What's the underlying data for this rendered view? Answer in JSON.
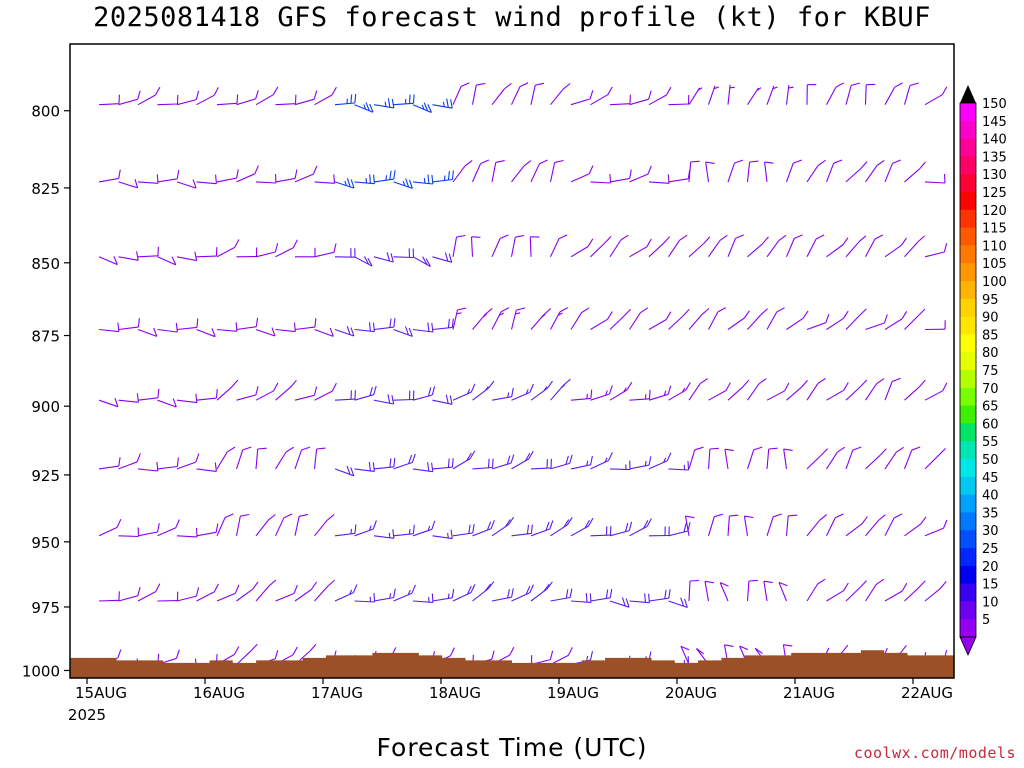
{
  "title": "2025081418 GFS forecast wind profile (kt) for KBUF",
  "xlabel": "Forecast Time (UTC)",
  "credit": "coolwx.com/models",
  "chart_data": {
    "type": "wind-barb profile",
    "title": "2025081418 GFS forecast wind profile (kt) for KBUF",
    "xlabel": "Forecast Time (UTC)",
    "ylabel": "",
    "x_ticks": [
      "15AUG",
      "16AUG",
      "17AUG",
      "18AUG",
      "19AUG",
      "20AUG",
      "21AUG",
      "22AUG"
    ],
    "x_year_label": "2025",
    "y_ticks": [
      800,
      825,
      850,
      875,
      900,
      925,
      950,
      975,
      1000
    ],
    "y_range": [
      1003,
      779
    ],
    "y_scale": "log",
    "units": "kt",
    "colorbar": {
      "labels": [
        150,
        145,
        140,
        135,
        130,
        125,
        120,
        115,
        110,
        105,
        100,
        95,
        90,
        85,
        80,
        75,
        70,
        65,
        60,
        55,
        50,
        45,
        40,
        35,
        30,
        25,
        20,
        15,
        10,
        5
      ],
      "colors": [
        "#ff00ff",
        "#ff00cc",
        "#ff0099",
        "#ff0066",
        "#ff0033",
        "#ff0000",
        "#ff3300",
        "#ff5a00",
        "#ff7800",
        "#ff9600",
        "#ffb400",
        "#ffd200",
        "#ffe600",
        "#ffff00",
        "#e6ff00",
        "#b4ff00",
        "#78ff00",
        "#3cf000",
        "#00e664",
        "#00e6b4",
        "#00e6e6",
        "#00c8f0",
        "#00a0ff",
        "#0078ff",
        "#0050ff",
        "#0028ff",
        "#0000f0",
        "#3c00f0",
        "#6e00f0",
        "#9600f0"
      ]
    },
    "terrain_color": "#9c5028",
    "speed_colors": {
      "light": "#8a00ee",
      "moderate": "#5a1cf0",
      "strong": "#0a3cf0"
    },
    "columns": [
      {
        "date": "15AUG",
        "barbs": [
          [
            800,
            "light",
            280,
            10
          ],
          [
            825,
            "light",
            270,
            10
          ],
          [
            850,
            "light",
            260,
            10
          ],
          [
            875,
            "light",
            260,
            10
          ],
          [
            900,
            "light",
            270,
            10
          ],
          [
            925,
            "light",
            280,
            10
          ],
          [
            950,
            "light",
            280,
            10
          ],
          [
            975,
            "light",
            280,
            10
          ],
          [
            1000,
            "light",
            280,
            10
          ]
        ]
      },
      {
        "date": "16AUG",
        "barbs": [
          [
            800,
            "light",
            290,
            10
          ],
          [
            825,
            "light",
            280,
            10
          ],
          [
            850,
            "light",
            280,
            10
          ],
          [
            875,
            "light",
            270,
            10
          ],
          [
            900,
            "light",
            300,
            10
          ],
          [
            925,
            "light",
            340,
            10
          ],
          [
            950,
            "light",
            330,
            10
          ],
          [
            975,
            "light",
            310,
            10
          ],
          [
            1000,
            "light",
            300,
            10
          ]
        ]
      },
      {
        "date": "17AUG",
        "barbs": [
          [
            800,
            "strong",
            260,
            25
          ],
          [
            825,
            "strong",
            260,
            25
          ],
          [
            850,
            "moderate",
            260,
            20
          ],
          [
            875,
            "moderate",
            265,
            20
          ],
          [
            900,
            "moderate",
            270,
            20
          ],
          [
            925,
            "moderate",
            270,
            20
          ],
          [
            950,
            "moderate",
            280,
            15
          ],
          [
            975,
            "moderate",
            280,
            15
          ],
          [
            1000,
            "light",
            280,
            10
          ]
        ]
      },
      {
        "date": "18AUG",
        "barbs": [
          [
            800,
            "light",
            330,
            10
          ],
          [
            825,
            "light",
            340,
            10
          ],
          [
            850,
            "light",
            350,
            10
          ],
          [
            875,
            "light",
            330,
            15
          ],
          [
            900,
            "moderate",
            300,
            15
          ],
          [
            925,
            "moderate",
            290,
            20
          ],
          [
            950,
            "moderate",
            290,
            20
          ],
          [
            975,
            "moderate",
            290,
            20
          ],
          [
            1000,
            "light",
            290,
            10
          ]
        ]
      },
      {
        "date": "19AUG",
        "barbs": [
          [
            800,
            "light",
            290,
            10
          ],
          [
            825,
            "light",
            280,
            10
          ],
          [
            850,
            "light",
            310,
            10
          ],
          [
            875,
            "light",
            320,
            10
          ],
          [
            900,
            "light",
            290,
            15
          ],
          [
            925,
            "moderate",
            280,
            15
          ],
          [
            950,
            "moderate",
            280,
            20
          ],
          [
            975,
            "moderate",
            270,
            20
          ],
          [
            1000,
            "moderate",
            270,
            15
          ]
        ]
      },
      {
        "date": "20AUG",
        "barbs": [
          [
            800,
            "light",
            340,
            5
          ],
          [
            825,
            "light",
            350,
            10
          ],
          [
            850,
            "light",
            330,
            10
          ],
          [
            875,
            "light",
            320,
            10
          ],
          [
            900,
            "light",
            310,
            10
          ],
          [
            925,
            "light",
            350,
            10
          ],
          [
            950,
            "light",
            0,
            10
          ],
          [
            975,
            "light",
            10,
            10
          ],
          [
            1000,
            "light",
            20,
            10
          ]
        ]
      },
      {
        "date": "21AUG",
        "barbs": [
          [
            800,
            "light",
            340,
            10
          ],
          [
            825,
            "light",
            330,
            10
          ],
          [
            850,
            "light",
            320,
            10
          ],
          [
            875,
            "light",
            300,
            10
          ],
          [
            900,
            "light",
            320,
            10
          ],
          [
            925,
            "light",
            330,
            10
          ],
          [
            950,
            "light",
            320,
            10
          ],
          [
            975,
            "light",
            310,
            10
          ],
          [
            1000,
            "light",
            300,
            10
          ]
        ]
      },
      {
        "date": "22AUG",
        "barbs": [
          [
            800,
            "light",
            290,
            10
          ],
          [
            825,
            "light",
            280,
            10
          ],
          [
            850,
            "light",
            280,
            10
          ],
          [
            875,
            "light",
            290,
            10
          ],
          [
            900,
            "light",
            300,
            10
          ],
          [
            925,
            "light",
            300,
            10
          ],
          [
            950,
            "light",
            300,
            10
          ],
          [
            975,
            "light",
            300,
            10
          ],
          [
            1000,
            "light",
            300,
            10
          ]
        ]
      }
    ]
  }
}
